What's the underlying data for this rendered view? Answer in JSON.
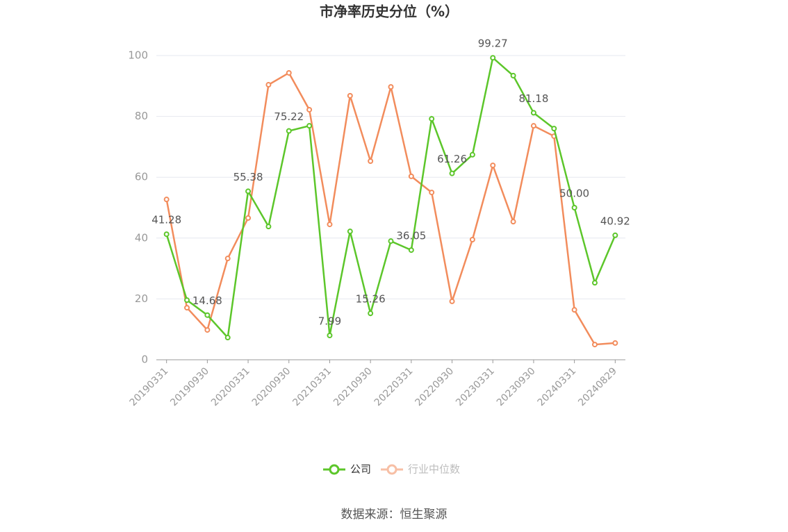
{
  "chart_data": {
    "type": "line",
    "title": "市净率历史分位（%）",
    "categories": [
      "20190331",
      null,
      "20190930",
      null,
      "20200331",
      null,
      "20200930",
      null,
      "20210331",
      null,
      "20210930",
      null,
      "20220331",
      null,
      "20220930",
      null,
      "20230331",
      null,
      "20230930",
      null,
      "20240331",
      null,
      "20240829"
    ],
    "series": [
      {
        "name": "公司",
        "color": "#5cc62a",
        "values": [
          41.28,
          19.6,
          14.68,
          7.3,
          55.38,
          43.8,
          75.22,
          76.9,
          7.99,
          42.2,
          15.26,
          39.0,
          36.05,
          79.2,
          61.26,
          67.4,
          99.27,
          93.4,
          81.18,
          76.0,
          50.0,
          25.3,
          40.92
        ],
        "value_labels": [
          "41.28",
          null,
          "14.68",
          null,
          "55.38",
          null,
          "75.22",
          null,
          "7.99",
          null,
          "15.26",
          null,
          "36.05",
          null,
          "61.26",
          null,
          "99.27",
          null,
          "81.18",
          null,
          "50.00",
          null,
          "40.92"
        ]
      },
      {
        "name": "行业中位数",
        "color": "#f28c5c",
        "values": [
          52.7,
          17.1,
          9.8,
          33.3,
          46.6,
          90.4,
          94.3,
          82.2,
          44.5,
          86.8,
          65.3,
          89.7,
          60.3,
          55.0,
          19.2,
          39.5,
          63.9,
          45.4,
          76.9,
          73.5,
          16.4,
          5.0,
          5.5
        ]
      }
    ],
    "ylim": [
      0,
      100
    ],
    "yticks": [
      0,
      20,
      40,
      60,
      80,
      100
    ],
    "grid": true,
    "source": "数据来源：恒生聚源"
  }
}
